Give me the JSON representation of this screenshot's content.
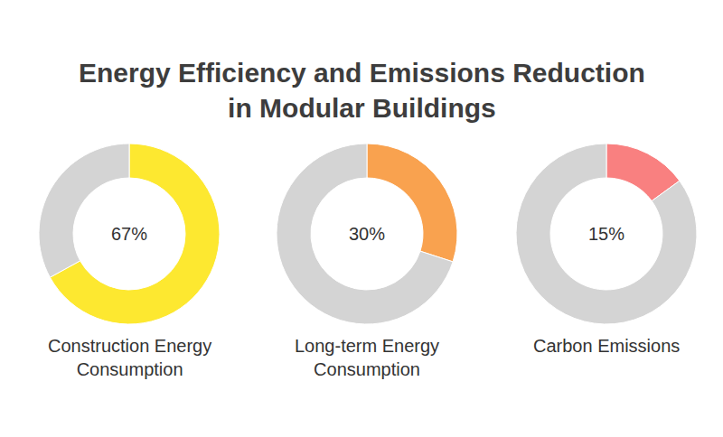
{
  "title": [
    "Energy Efficiency and Emissions Reduction",
    "in Modular Buildings"
  ],
  "chart_data": [
    {
      "type": "pie",
      "title": [
        "Construction Energy",
        "Consumption"
      ],
      "values": [
        67,
        33
      ],
      "colors": [
        "#fde830",
        "#d4d4d4"
      ],
      "value_labels": [
        "67%",
        null
      ]
    },
    {
      "type": "pie",
      "title": [
        "Long-term Energy",
        "Consumption"
      ],
      "values": [
        30,
        70
      ],
      "colors": [
        "#f9a24f",
        "#d4d4d4"
      ],
      "value_labels": [
        "30%",
        null
      ]
    },
    {
      "type": "pie",
      "title": [
        "Carbon Emissions"
      ],
      "values": [
        15,
        85
      ],
      "colors": [
        "#f98080",
        "#d4d4d4"
      ],
      "value_labels": [
        "15%",
        null
      ]
    }
  ]
}
